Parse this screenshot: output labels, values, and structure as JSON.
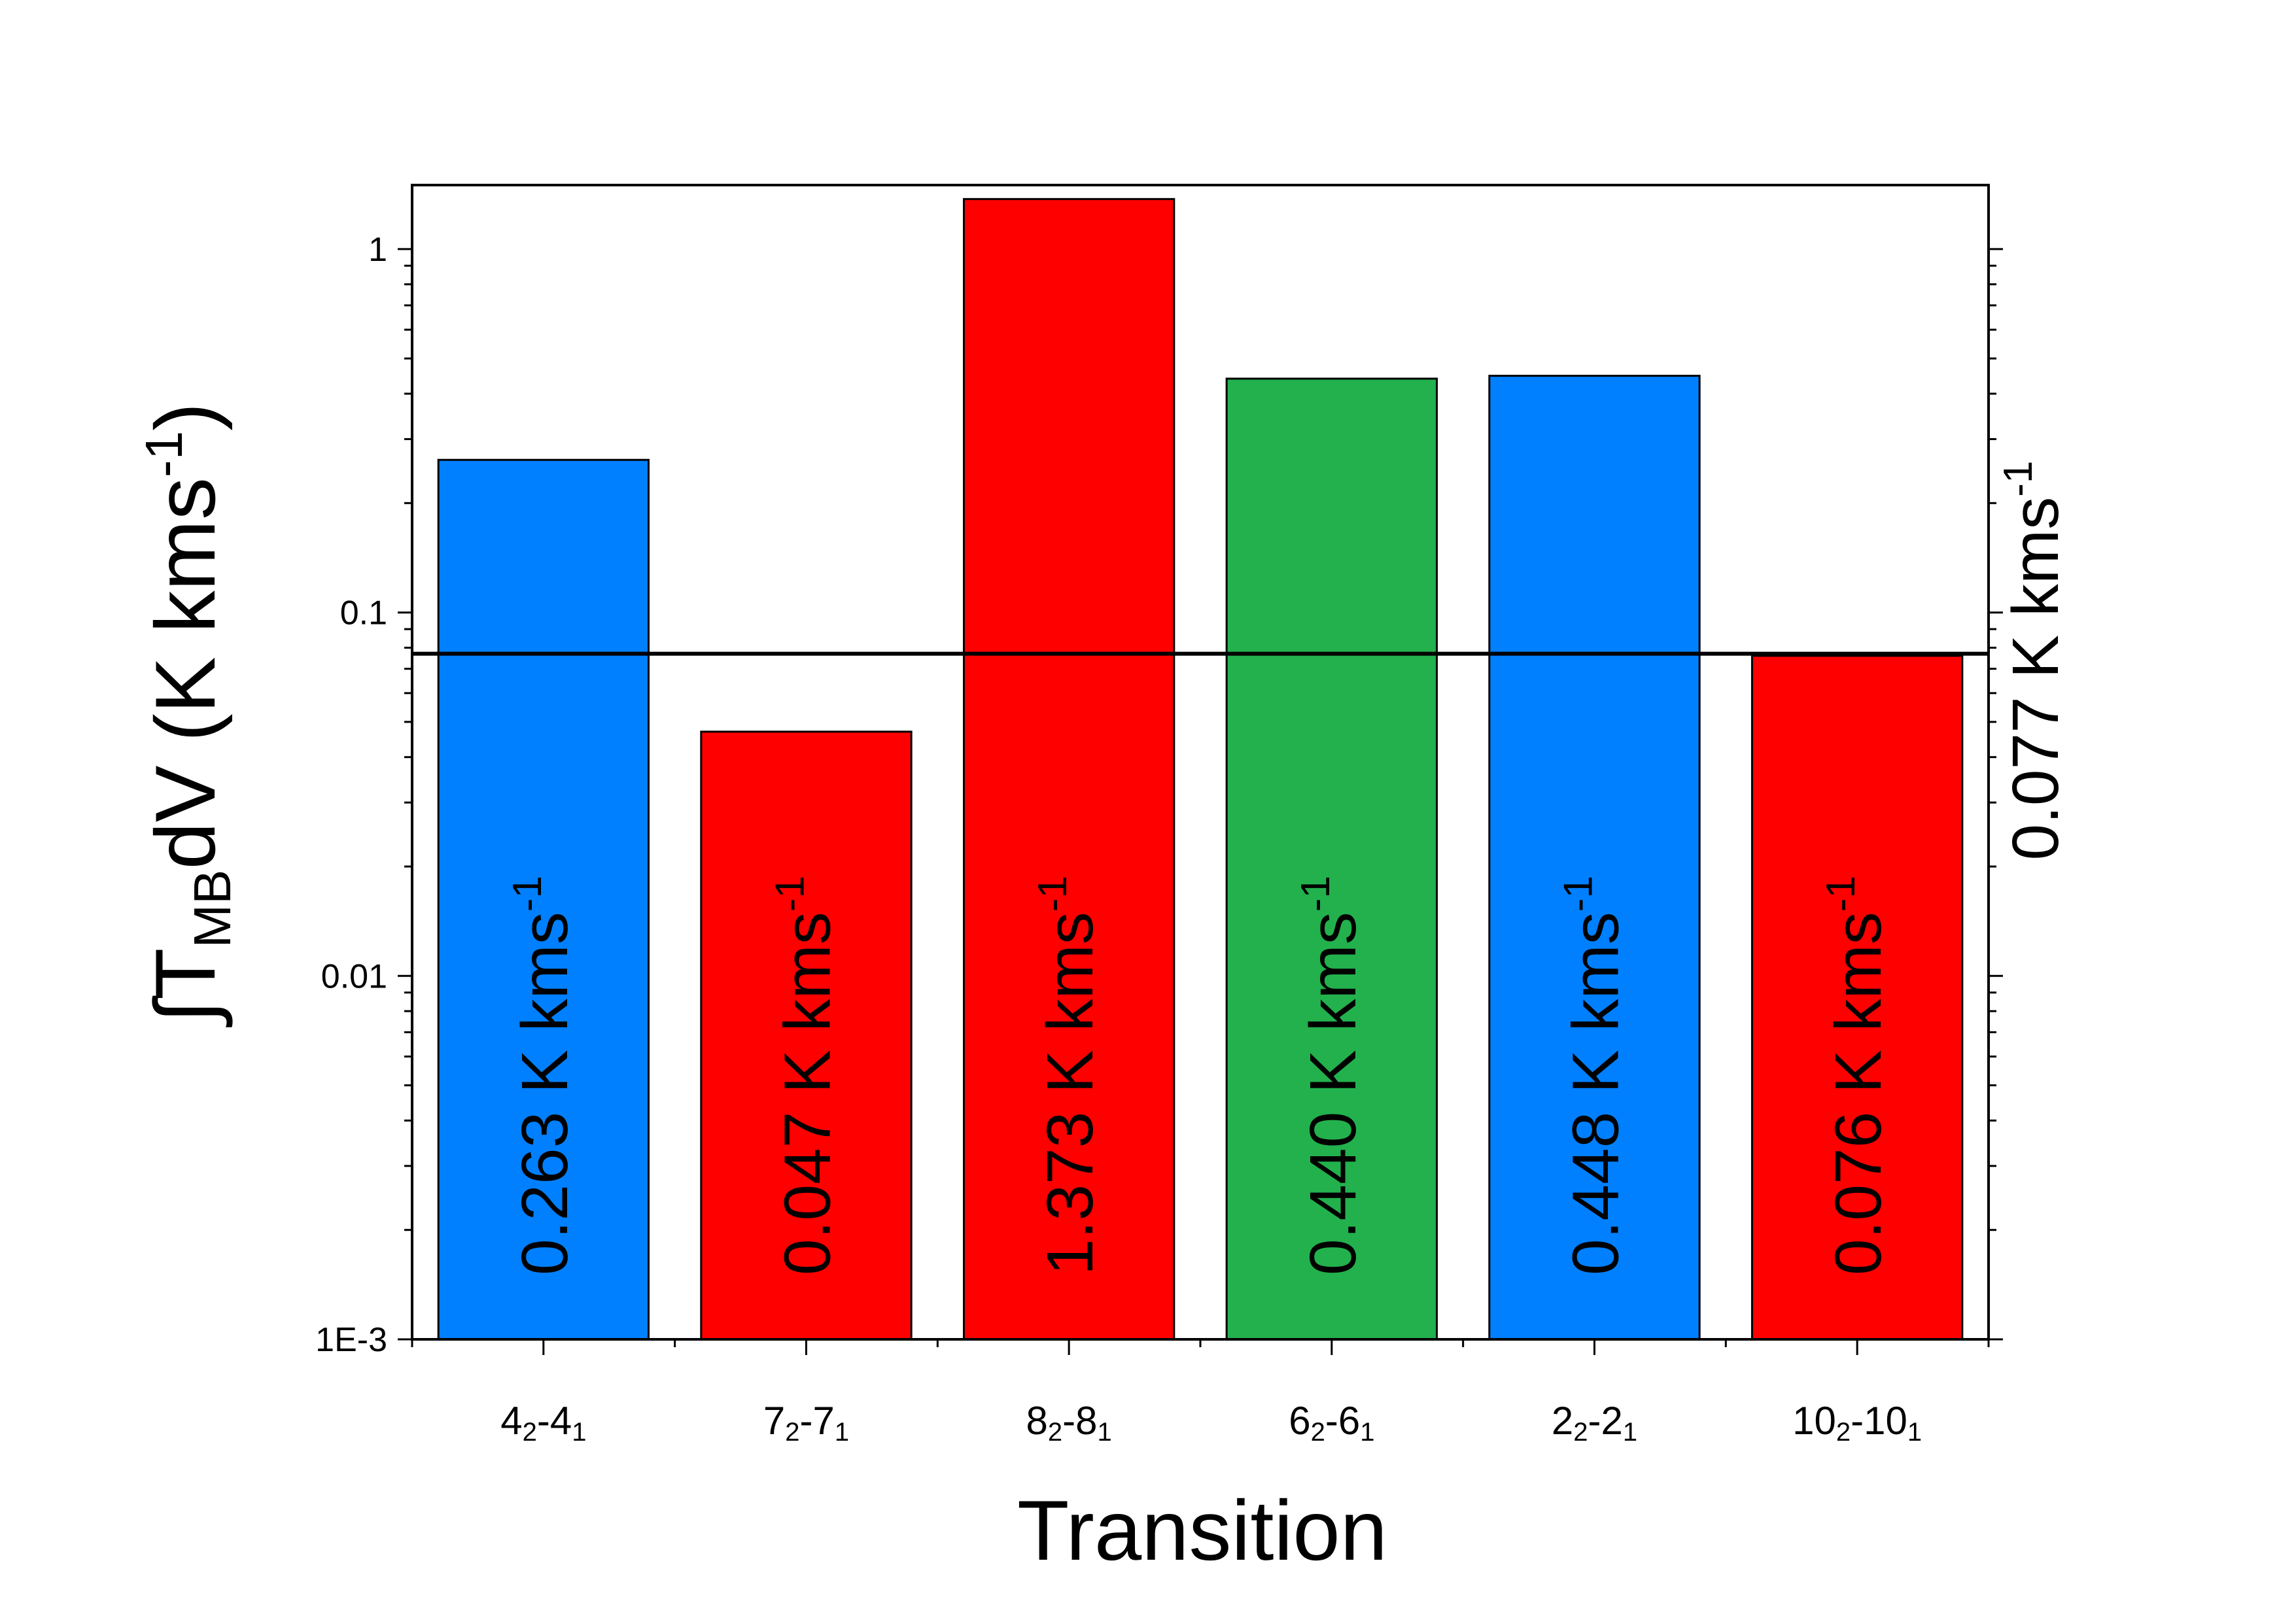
{
  "chart_data": {
    "type": "bar",
    "xlabel": "Transition",
    "ylabel": {
      "prefix": "∫T",
      "sub": "MB",
      "main": "dV (K kms",
      "sup": "-1",
      "close": ")"
    },
    "yscale": "log",
    "ylim": [
      0.001,
      1.5
    ],
    "yticks": [
      {
        "value": 0.001,
        "label": "1E-3"
      },
      {
        "value": 0.01,
        "label": "0.01"
      },
      {
        "value": 0.1,
        "label": "0.1"
      },
      {
        "value": 1,
        "label": "1"
      }
    ],
    "categories": [
      {
        "a": "4",
        "as": "2",
        "b": "4",
        "bs": "1"
      },
      {
        "a": "7",
        "as": "2",
        "b": "7",
        "bs": "1"
      },
      {
        "a": "8",
        "as": "2",
        "b": "8",
        "bs": "1"
      },
      {
        "a": "6",
        "as": "2",
        "b": "6",
        "bs": "1"
      },
      {
        "a": "2",
        "as": "2",
        "b": "2",
        "bs": "1"
      },
      {
        "a": "10",
        "as": "2",
        "b": "10",
        "bs": "1"
      }
    ],
    "values": [
      0.263,
      0.047,
      1.373,
      0.44,
      0.448,
      0.076
    ],
    "bar_labels": [
      "0.263 K kms",
      "0.047 K kms",
      "1.373 K kms",
      "0.440 K kms",
      "0.448 K kms",
      "0.076 K kms"
    ],
    "bar_label_sup": "-1",
    "colors": [
      "#0080ff",
      "#ff0000",
      "#ff0000",
      "#22b14c",
      "#0080ff",
      "#ff0000"
    ],
    "threshold": {
      "value": 0.077,
      "label": "0.077 K kms",
      "sup": "-1"
    }
  }
}
